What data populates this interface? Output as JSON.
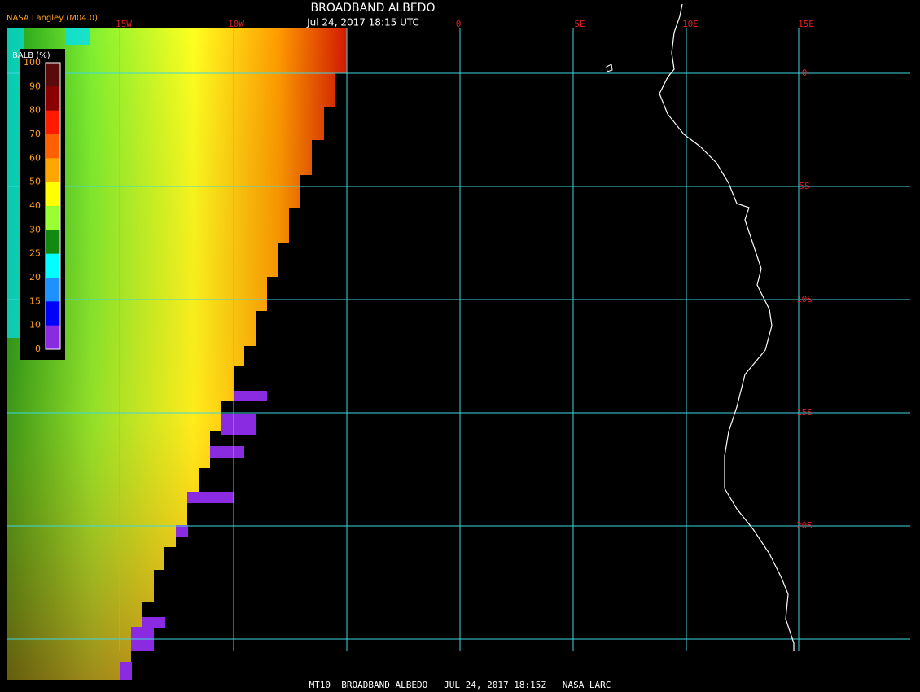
{
  "header": {
    "title": "BROADBAND ALBEDO",
    "timestamp": "Jul 24, 2017 18:15 UTC",
    "source": "NASA Langley (M04.0)"
  },
  "colorbar": {
    "label": "BALB (%)",
    "ticks": [
      100,
      90,
      80,
      70,
      60,
      50,
      40,
      30,
      25,
      20,
      15,
      10,
      0
    ],
    "colors": [
      "#5a0a0a",
      "#8b0000",
      "#ff1a00",
      "#ff6000",
      "#ffa500",
      "#ffff00",
      "#99ff33",
      "#128a12",
      "#00ffff",
      "#1e90ff",
      "#0000ff",
      "#8a2be2"
    ]
  },
  "grid": {
    "lon_labels": [
      "15W",
      "10W",
      "0",
      "5E",
      "10E",
      "15E"
    ],
    "lat_labels": [
      "0",
      "5S",
      "10S",
      "15S",
      "20S"
    ]
  },
  "footer": "MT10  BROADBAND ALBEDO   JUL 24, 2017 18:15Z   NASA LARC"
}
